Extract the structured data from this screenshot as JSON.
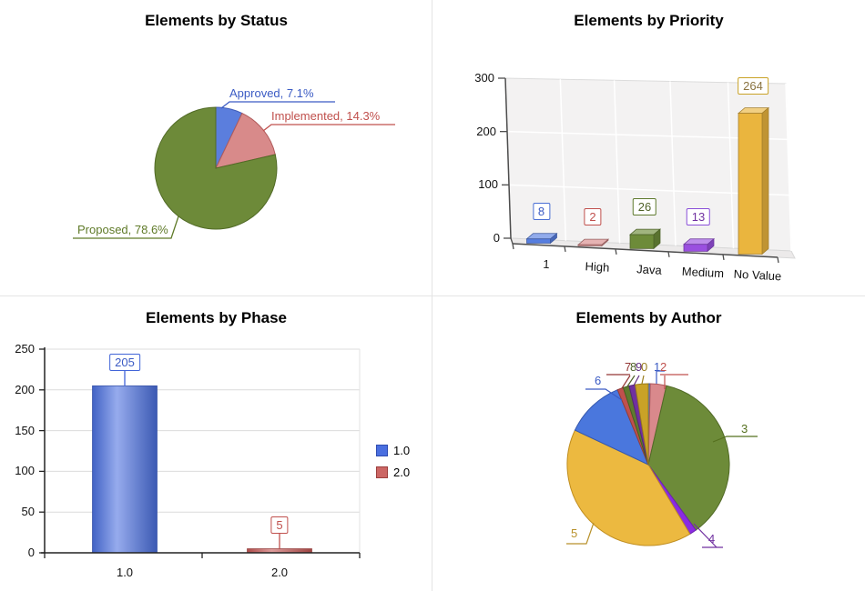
{
  "dashboard": {
    "background": "#ffffff",
    "divider_color": "#e4e4e4"
  },
  "chart_data": [
    {
      "type": "pie",
      "title": "Elements by Status",
      "legend_position": "none",
      "slices": [
        {
          "label": "Approved",
          "percent": 7.1,
          "color": "#5b7edd",
          "border": "#3f5cb8",
          "text_color": "#3b5bc4",
          "callout_text": "Approved, 7.1%"
        },
        {
          "label": "Implemented",
          "percent": 14.3,
          "color": "#d88a8a",
          "border": "#b05a5a",
          "text_color": "#c0504d",
          "callout_text": "Implemented, 14.3%"
        },
        {
          "label": "Proposed",
          "percent": 78.6,
          "color": "#6d8a39",
          "border": "#516a26",
          "text_color": "#5f7a28",
          "callout_text": "Proposed, 78.6%"
        }
      ]
    },
    {
      "type": "bar",
      "variant": "3d",
      "title": "Elements by Priority",
      "categories": [
        "1",
        "High",
        "Java",
        "Medium",
        "No Value"
      ],
      "values": [
        8,
        2,
        26,
        13,
        264
      ],
      "colors": [
        "#567ee0",
        "#d88a8a",
        "#6d8b39",
        "#9a4fe0",
        "#eab53e"
      ],
      "box_border": [
        "#4a6fd4",
        "#c0504d",
        "#5f7a2e",
        "#8a4fd8",
        "#c9a227"
      ],
      "label_colors": [
        "#3b5bc4",
        "#c0504d",
        "#4f6228",
        "#7030a0",
        "#8a7340"
      ],
      "ylim": [
        0,
        300
      ],
      "yticks": [
        0,
        100,
        200,
        300
      ],
      "grid": true
    },
    {
      "type": "bar",
      "title": "Elements by Phase",
      "categories": [
        "1.0",
        "2.0"
      ],
      "values": [
        205,
        5
      ],
      "colors": [
        "#4a6fe0",
        "#c65553"
      ],
      "box_border": [
        "#4164d8",
        "#c0504d"
      ],
      "label_colors": [
        "#3b5bc4",
        "#c0504d"
      ],
      "ylim": [
        0,
        250
      ],
      "yticks": [
        0,
        50,
        100,
        150,
        200,
        250
      ],
      "grid": true,
      "legend_position": "right",
      "legend": [
        {
          "label": "1.0",
          "color": "#4a6fe0",
          "border": "#2f4cb0"
        },
        {
          "label": "2.0",
          "color": "#cc6664",
          "border": "#9c3f3d"
        }
      ]
    },
    {
      "type": "pie",
      "title": "Elements by Author",
      "legend_position": "none",
      "slices": [
        {
          "label": "1",
          "percent": 0.4,
          "color": "#4a77dd",
          "border": "#3558ad",
          "text_color": "#3b5bc4"
        },
        {
          "label": "2",
          "percent": 3.2,
          "color": "#d9898c",
          "border": "#b05a5e",
          "text_color": "#c0504d"
        },
        {
          "label": "3",
          "percent": 36.4,
          "color": "#6d8b39",
          "border": "#516a26",
          "text_color": "#55701f"
        },
        {
          "label": "4",
          "percent": 1.4,
          "color": "#8a2be2",
          "border": "#6b21af",
          "text_color": "#7030a0"
        },
        {
          "label": "5",
          "percent": 40.6,
          "color": "#ecb940",
          "border": "#c08e20",
          "text_color": "#b8912a"
        },
        {
          "label": "6",
          "percent": 11.8,
          "color": "#4a77dd",
          "border": "#3558ad",
          "text_color": "#3b5bc4"
        },
        {
          "label": "7",
          "percent": 1.2,
          "color": "#c0504d",
          "border": "#943d3a",
          "text_color": "#943634"
        },
        {
          "label": "8",
          "percent": 1.2,
          "color": "#5f7a2e",
          "border": "#485e20",
          "text_color": "#4f6228"
        },
        {
          "label": "9",
          "percent": 1.2,
          "color": "#7030a0",
          "border": "#56257b",
          "text_color": "#5f2a80"
        },
        {
          "label": "0",
          "percent": 2.6,
          "color": "#c9a227",
          "border": "#9a7c1c",
          "text_color": "#9a7d1e"
        }
      ]
    }
  ]
}
